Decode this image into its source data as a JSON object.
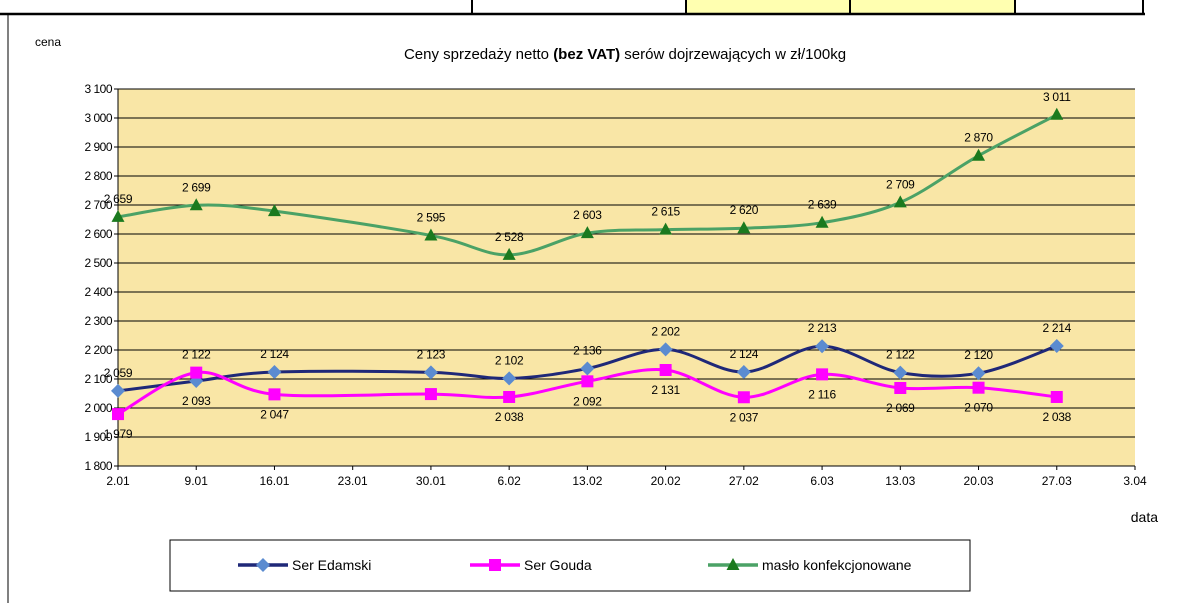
{
  "chart_data": {
    "type": "line",
    "title": [
      "Ceny sprzedaży netto ",
      "(bez VAT)",
      " serów dojrzewających  w zł/100kg"
    ],
    "y_label": "cena",
    "x_label": "data",
    "xticks": [
      "2.01",
      "9.01",
      "16.01",
      "23.01",
      "30.01",
      "6.02",
      "13.02",
      "20.02",
      "27.02",
      "6.03",
      "13.03",
      "20.03",
      "27.03",
      "3.04"
    ],
    "x": [
      "2.01",
      "9.01",
      "16.01",
      "30.01",
      "6.02",
      "13.02",
      "20.02",
      "27.02",
      "6.03",
      "13.03",
      "20.03",
      "27.03"
    ],
    "ylim": [
      1800,
      3100
    ],
    "yticks": [
      {
        "value": 1800,
        "label": "1 800"
      },
      {
        "value": 1900,
        "label": "1 900"
      },
      {
        "value": 2000,
        "label": "2 000"
      },
      {
        "value": 2100,
        "label": "2 100"
      },
      {
        "value": 2200,
        "label": "2 200"
      },
      {
        "value": 2300,
        "label": "2 300"
      },
      {
        "value": 2400,
        "label": "2 400"
      },
      {
        "value": 2500,
        "label": "2 500"
      },
      {
        "value": 2600,
        "label": "2 600"
      },
      {
        "value": 2700,
        "label": "2 700"
      },
      {
        "value": 2800,
        "label": "2 800"
      },
      {
        "value": 2900,
        "label": "2 900"
      },
      {
        "value": 3000,
        "label": "3 000"
      },
      {
        "value": 3100,
        "label": "3 100"
      }
    ],
    "grid": true,
    "plot_background": "#f9e6a6",
    "series": [
      {
        "name": "Ser Edamski",
        "color": "#1f2878",
        "marker": "diamond",
        "marker_color": "#5b8bd0",
        "values": [
          2059,
          2093,
          2124,
          2123,
          2102,
          2136,
          2202,
          2124,
          2213,
          2122,
          2120,
          2214
        ],
        "value_labels": [
          "2 059",
          "2 093",
          "2 124",
          "2 123",
          "2 102",
          "2 136",
          "2 202",
          "2 124",
          "2 213",
          "2 122",
          "2 120",
          "2 214"
        ]
      },
      {
        "name": "Ser Gouda",
        "color": "#ff00ff",
        "marker": "square",
        "marker_color": "#ff00ff",
        "values": [
          1979,
          2122,
          2047,
          2048,
          2038,
          2092,
          2131,
          2037,
          2116,
          2069,
          2070,
          2038
        ],
        "value_labels": [
          "1 979",
          "2 122",
          "2 047",
          null,
          "2 038",
          "2 092",
          "2 131",
          "2 037",
          "2 116",
          "2 069",
          "2 070",
          "2 038"
        ]
      },
      {
        "name": "masło konfekcjonowane",
        "color": "#4ba266",
        "marker": "triangle",
        "marker_color": "#1b7a1f",
        "values": [
          2659,
          2699,
          2679,
          2595,
          2528,
          2603,
          2615,
          2620,
          2639,
          2709,
          2870,
          3011
        ],
        "value_labels": [
          "2 659",
          "2 699",
          null,
          "2 595",
          "2 528",
          "2 603",
          "2 615",
          "2 620",
          "2 639",
          "2 709",
          "2 870",
          "3 011"
        ]
      }
    ]
  }
}
